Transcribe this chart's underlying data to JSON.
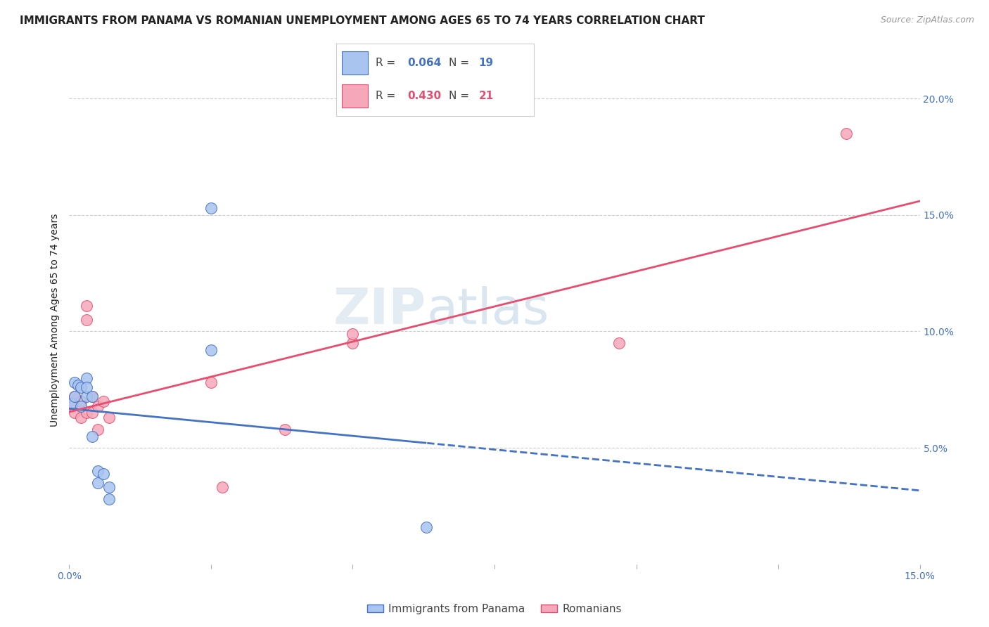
{
  "title": "IMMIGRANTS FROM PANAMA VS ROMANIAN UNEMPLOYMENT AMONG AGES 65 TO 74 YEARS CORRELATION CHART",
  "source": "Source: ZipAtlas.com",
  "ylabel": "Unemployment Among Ages 65 to 74 years",
  "xlim": [
    0.0,
    0.15
  ],
  "ylim": [
    0.0,
    0.21
  ],
  "x_ticks": [
    0.0,
    0.025,
    0.05,
    0.075,
    0.1,
    0.125,
    0.15
  ],
  "x_tick_labels": [
    "0.0%",
    "",
    "",
    "",
    "",
    "",
    "15.0%"
  ],
  "y_ticks_right": [
    0.05,
    0.1,
    0.15,
    0.2
  ],
  "y_tick_labels_right": [
    "5.0%",
    "10.0%",
    "15.0%",
    "20.0%"
  ],
  "panama_color": "#a8c4ef",
  "romania_color": "#f5a8ba",
  "panama_line_color": "#4472c4",
  "romania_line_color": "#e84c6f",
  "panama_R": 0.064,
  "panama_N": 19,
  "romania_R": 0.43,
  "romania_N": 21,
  "watermark_zip": "ZIP",
  "watermark_atlas": "atlas",
  "panama_x": [
    0.0005,
    0.001,
    0.001,
    0.0015,
    0.002,
    0.002,
    0.003,
    0.003,
    0.003,
    0.004,
    0.004,
    0.005,
    0.005,
    0.006,
    0.007,
    0.007,
    0.025,
    0.025,
    0.063
  ],
  "panama_y": [
    0.069,
    0.072,
    0.078,
    0.077,
    0.068,
    0.076,
    0.072,
    0.08,
    0.076,
    0.055,
    0.072,
    0.04,
    0.035,
    0.039,
    0.033,
    0.028,
    0.153,
    0.092,
    0.016
  ],
  "romania_x": [
    0.0005,
    0.001,
    0.001,
    0.002,
    0.002,
    0.003,
    0.003,
    0.003,
    0.004,
    0.004,
    0.005,
    0.005,
    0.006,
    0.007,
    0.025,
    0.027,
    0.038,
    0.05,
    0.05,
    0.097,
    0.137
  ],
  "romania_y": [
    0.068,
    0.065,
    0.072,
    0.07,
    0.063,
    0.111,
    0.105,
    0.065,
    0.072,
    0.065,
    0.068,
    0.058,
    0.07,
    0.063,
    0.078,
    0.033,
    0.058,
    0.095,
    0.099,
    0.095,
    0.185
  ],
  "background_color": "#ffffff",
  "title_fontsize": 11,
  "axis_label_fontsize": 10,
  "tick_fontsize": 10,
  "marker_size": 130,
  "title_color": "#222222",
  "tick_color": "#4472c4",
  "grid_color": "#cccccc"
}
